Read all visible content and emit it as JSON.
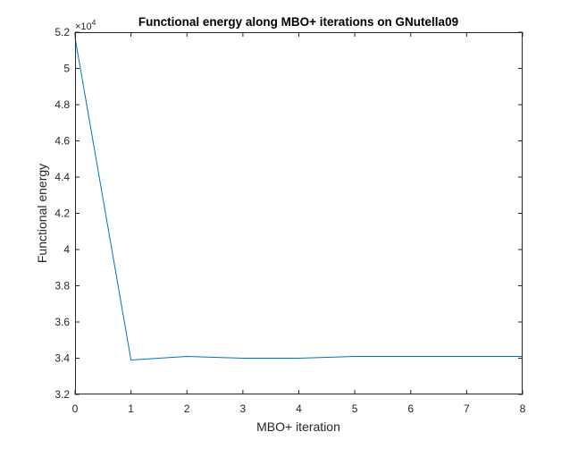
{
  "chart_data": {
    "type": "line",
    "title": "Functional energy along MBO+ iterations on GNutella09",
    "xlabel": "MBO+ iteration",
    "ylabel": "Functional energy",
    "y_exponent_label": "×10",
    "y_exponent_power": "4",
    "xlim": [
      0,
      8
    ],
    "ylim": [
      3.2,
      5.2
    ],
    "x_ticks": [
      0,
      1,
      2,
      3,
      4,
      5,
      6,
      7,
      8
    ],
    "x_tick_labels": [
      "0",
      "1",
      "2",
      "3",
      "4",
      "5",
      "6",
      "7",
      "8"
    ],
    "y_ticks": [
      3.2,
      3.4,
      3.6,
      3.8,
      4,
      4.2,
      4.4,
      4.6,
      4.8,
      5,
      5.2
    ],
    "y_tick_labels": [
      "3.2",
      "3.4",
      "3.6",
      "3.8",
      "4",
      "4.2",
      "4.4",
      "4.6",
      "4.8",
      "5",
      "5.2"
    ],
    "grid": false,
    "series": [
      {
        "color": "#0072BD",
        "x": [
          0,
          1,
          2,
          3,
          4,
          5,
          6,
          7,
          8
        ],
        "y": [
          5.17,
          3.39,
          3.41,
          3.4,
          3.4,
          3.41,
          3.41,
          3.41,
          3.41
        ]
      }
    ]
  }
}
